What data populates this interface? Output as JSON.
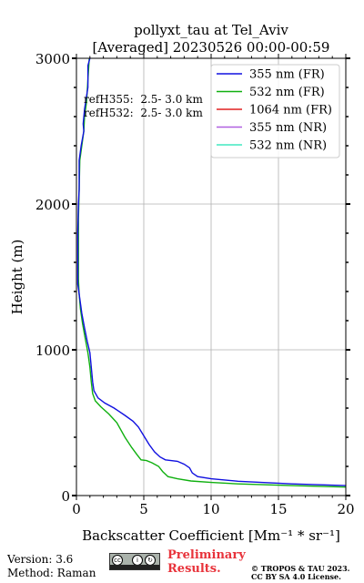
{
  "chart_data": {
    "type": "line",
    "title": "pollyxt_tau at Tel_Aviv",
    "subtitle": "[Averaged] 20230526 00:00-00:59",
    "xlabel": "Backscatter Coefficient [Mm⁻¹ * sr⁻¹]",
    "ylabel": "Height (m)",
    "xlim": [
      0,
      20
    ],
    "ylim": [
      0,
      3000
    ],
    "xticks": [
      "0",
      "5",
      "10",
      "15",
      "20"
    ],
    "yticks": [
      "0",
      "1000",
      "2000",
      "3000"
    ],
    "xtick_values": [
      0,
      5,
      10,
      15,
      20
    ],
    "ytick_values": [
      0,
      1000,
      2000,
      3000
    ],
    "grid": true,
    "legend_position": "top-right",
    "annotations": [
      "refH355:  2.5- 3.0 km",
      "refH532:  2.5- 3.0 km"
    ],
    "series": [
      {
        "name": "355 nm (FR)",
        "color": "#1010e0",
        "points": [
          [
            20,
            68
          ],
          [
            16,
            80
          ],
          [
            12,
            98
          ],
          [
            10,
            115
          ],
          [
            9,
            130
          ],
          [
            8.6,
            155
          ],
          [
            8.4,
            190
          ],
          [
            8,
            215
          ],
          [
            7.5,
            235
          ],
          [
            6.6,
            245
          ],
          [
            6.2,
            265
          ],
          [
            5.8,
            300
          ],
          [
            5.4,
            350
          ],
          [
            5,
            410
          ],
          [
            4.6,
            470
          ],
          [
            4.2,
            510
          ],
          [
            3.6,
            550
          ],
          [
            2.8,
            600
          ],
          [
            2.1,
            635
          ],
          [
            1.6,
            670
          ],
          [
            1.3,
            720
          ],
          [
            1.2,
            780
          ],
          [
            1.1,
            880
          ],
          [
            1,
            980
          ],
          [
            0.8,
            1060
          ],
          [
            0.6,
            1150
          ],
          [
            0.4,
            1250
          ],
          [
            0.25,
            1350
          ],
          [
            0.1,
            1450
          ],
          [
            0.1,
            1600
          ],
          [
            0.1,
            1800
          ],
          [
            0.15,
            2000
          ],
          [
            0.2,
            2100
          ],
          [
            0.2,
            2300
          ],
          [
            0.35,
            2400
          ],
          [
            0.55,
            2500
          ],
          [
            0.5,
            2550
          ],
          [
            0.6,
            2650
          ],
          [
            0.85,
            2800
          ],
          [
            0.85,
            2950
          ],
          [
            1,
            3000
          ]
        ]
      },
      {
        "name": "532 nm (FR)",
        "color": "#10b010",
        "points": [
          [
            20,
            58
          ],
          [
            16,
            68
          ],
          [
            12,
            80
          ],
          [
            10,
            90
          ],
          [
            8.5,
            100
          ],
          [
            7.5,
            115
          ],
          [
            6.8,
            130
          ],
          [
            6.4,
            165
          ],
          [
            6.1,
            200
          ],
          [
            5.6,
            225
          ],
          [
            5.2,
            240
          ],
          [
            4.8,
            245
          ],
          [
            4.5,
            280
          ],
          [
            4.1,
            330
          ],
          [
            3.6,
            400
          ],
          [
            3,
            500
          ],
          [
            2.4,
            560
          ],
          [
            1.8,
            610
          ],
          [
            1.4,
            650
          ],
          [
            1.2,
            700
          ],
          [
            1.1,
            780
          ],
          [
            1,
            880
          ],
          [
            0.85,
            980
          ],
          [
            0.65,
            1080
          ],
          [
            0.45,
            1180
          ],
          [
            0.3,
            1280
          ],
          [
            0.2,
            1380
          ],
          [
            0.15,
            1480
          ],
          [
            0.15,
            1650
          ],
          [
            0.15,
            1900
          ],
          [
            0.2,
            2100
          ],
          [
            0.25,
            2300
          ],
          [
            0.4,
            2400
          ],
          [
            0.55,
            2500
          ],
          [
            0.6,
            2600
          ],
          [
            0.75,
            2700
          ],
          [
            0.85,
            2850
          ],
          [
            0.95,
            3000
          ]
        ]
      },
      {
        "name": "1064 nm (FR)",
        "color": "#e02020",
        "points": []
      },
      {
        "name": "355 nm (NR)",
        "color": "#b060e0",
        "points": []
      },
      {
        "name": "532 nm (NR)",
        "color": "#40e8c0",
        "points": []
      }
    ]
  },
  "footer": {
    "version": "Version: 3.6",
    "method": "Method: Raman",
    "preliminary_line1": "Preliminary",
    "preliminary_line2": "Results.",
    "copyright_line1": "© TROPOS & TAU 2023.",
    "copyright_line2": "CC BY SA 4.0 License.",
    "license_icon": "cc-by-sa-icon"
  }
}
